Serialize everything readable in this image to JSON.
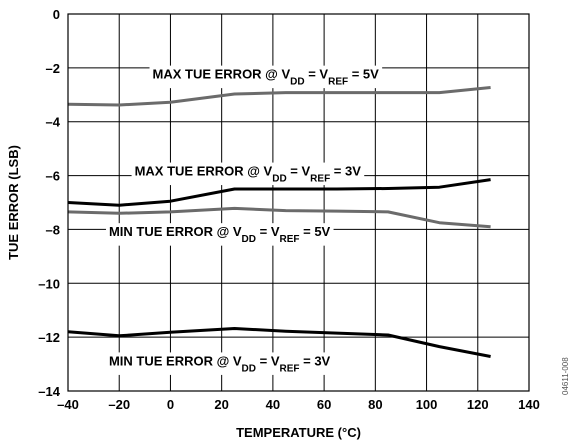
{
  "chart_data": {
    "type": "line",
    "xlabel": "TEMPERATURE (°C)",
    "ylabel": "TUE ERROR (LSB)",
    "xlim": [
      -40,
      140
    ],
    "ylim": [
      -14,
      0
    ],
    "xticks": [
      -40,
      -20,
      0,
      20,
      40,
      60,
      80,
      100,
      120,
      140
    ],
    "yticks": [
      0,
      -2,
      -4,
      -6,
      -8,
      -10,
      -12,
      -14
    ],
    "grid": true,
    "series": [
      {
        "color": "#6b6b6b",
        "x": [
          -40,
          -20,
          0,
          25,
          45,
          65,
          85,
          105,
          125
        ],
        "y": [
          -3.35,
          -3.38,
          -3.28,
          -2.97,
          -2.92,
          -2.92,
          -2.92,
          -2.92,
          -2.73
        ]
      },
      {
        "color": "#000000",
        "x": [
          -40,
          -20,
          0,
          25,
          45,
          65,
          85,
          105,
          125
        ],
        "y": [
          -7.0,
          -7.1,
          -6.95,
          -6.5,
          -6.5,
          -6.5,
          -6.48,
          -6.43,
          -6.15
        ]
      },
      {
        "color": "#6b6b6b",
        "x": [
          -40,
          -20,
          0,
          25,
          45,
          65,
          85,
          105,
          125
        ],
        "y": [
          -7.35,
          -7.4,
          -7.35,
          -7.22,
          -7.3,
          -7.32,
          -7.35,
          -7.75,
          -7.9
        ]
      },
      {
        "color": "#000000",
        "x": [
          -40,
          -20,
          0,
          25,
          45,
          65,
          85,
          105,
          125
        ],
        "y": [
          -11.8,
          -11.95,
          -11.82,
          -11.68,
          -11.78,
          -11.85,
          -11.92,
          -12.35,
          -12.72
        ]
      }
    ],
    "annotations": [
      {
        "prefix": "MAX TUE ERROR @ V",
        "sub1": "DD",
        "mid": " = V",
        "sub2": "REF",
        "suffix": " = 5V",
        "x": -7,
        "y": -2.4,
        "anchor": "start"
      },
      {
        "prefix": "MAX TUE  ERROR @ V",
        "sub1": "DD",
        "mid": " = V",
        "sub2": "REF",
        "suffix": " = 3V",
        "x": -14,
        "y": -6.0,
        "anchor": "start"
      },
      {
        "prefix": "MIN TUE ERROR @ V",
        "sub1": "DD",
        "mid": " = V",
        "sub2": "REF",
        "suffix": " = 5V",
        "x": -24,
        "y": -8.25,
        "anchor": "start"
      },
      {
        "prefix": "MIN TUE ERROR @ V",
        "sub1": "DD",
        "mid": " = V",
        "sub2": "REF",
        "suffix": " = 3V",
        "x": -24,
        "y": -13.05,
        "anchor": "start"
      }
    ],
    "figure_id": "04611-008"
  }
}
